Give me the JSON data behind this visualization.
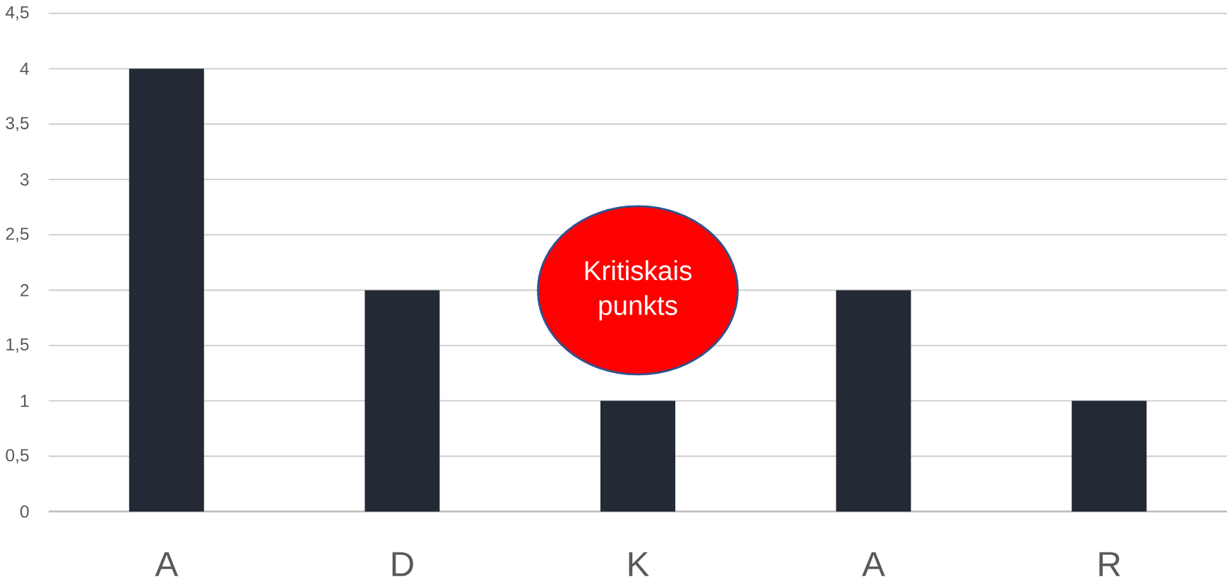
{
  "chart_data": {
    "type": "bar",
    "categories": [
      "A",
      "D",
      "K",
      "A",
      "R"
    ],
    "values": [
      4,
      2,
      1,
      2,
      1
    ],
    "color": "#232a35",
    "ylim": [
      0,
      4.5
    ],
    "yticks": [
      0,
      {
        "value": 0.5,
        "label": "0,5"
      },
      1,
      {
        "value": 1.5,
        "label": "1,5"
      },
      2,
      {
        "value": 2.5,
        "label": "2,5"
      },
      3,
      {
        "value": 3.5,
        "label": "3,5"
      },
      4,
      {
        "value": 4.5,
        "label": "4,5"
      }
    ],
    "grid": "y",
    "annotations": [
      "Kritiskais punkts"
    ]
  }
}
